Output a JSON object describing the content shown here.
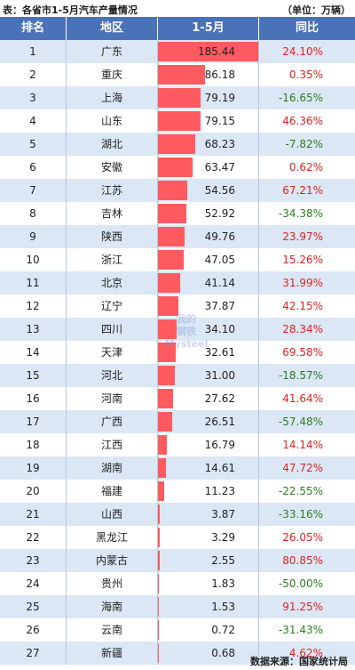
{
  "caption": {
    "title": "表：各省市1-5月汽车产量情况",
    "unit": "（单位：万辆）"
  },
  "source": "数据来源：国家统计局",
  "colors": {
    "header": "#4a72b8",
    "bar": "#ff5a5f",
    "positive": "#e0231e",
    "negative": "#2e7d1f",
    "band": "#dbe7f5"
  },
  "chart_data": {
    "type": "table",
    "columns": [
      "排名",
      "地区",
      "1-5月",
      "同比"
    ],
    "max_value": 185.44,
    "rows": [
      {
        "rank": "1",
        "region": "广东",
        "value": 185.44,
        "value_label": "185.44",
        "yoy": "24.10%"
      },
      {
        "rank": "2",
        "region": "重庆",
        "value": 86.18,
        "value_label": "86.18",
        "yoy": "0.35%"
      },
      {
        "rank": "3",
        "region": "上海",
        "value": 79.19,
        "value_label": "79.19",
        "yoy": "-16.65%"
      },
      {
        "rank": "4",
        "region": "山东",
        "value": 79.15,
        "value_label": "79.15",
        "yoy": "46.36%"
      },
      {
        "rank": "5",
        "region": "湖北",
        "value": 68.23,
        "value_label": "68.23",
        "yoy": "-7.82%"
      },
      {
        "rank": "6",
        "region": "安徽",
        "value": 63.47,
        "value_label": "63.47",
        "yoy": "0.62%"
      },
      {
        "rank": "7",
        "region": "江苏",
        "value": 54.56,
        "value_label": "54.56",
        "yoy": "67.21%"
      },
      {
        "rank": "8",
        "region": "吉林",
        "value": 52.92,
        "value_label": "52.92",
        "yoy": "-34.38%"
      },
      {
        "rank": "9",
        "region": "陕西",
        "value": 49.76,
        "value_label": "49.76",
        "yoy": "23.97%"
      },
      {
        "rank": "10",
        "region": "浙江",
        "value": 47.05,
        "value_label": "47.05",
        "yoy": "15.26%"
      },
      {
        "rank": "11",
        "region": "北京",
        "value": 41.14,
        "value_label": "41.14",
        "yoy": "31.99%"
      },
      {
        "rank": "12",
        "region": "辽宁",
        "value": 37.87,
        "value_label": "37.87",
        "yoy": "42.15%"
      },
      {
        "rank": "13",
        "region": "四川",
        "value": 34.1,
        "value_label": "34.10",
        "yoy": "28.34%"
      },
      {
        "rank": "14",
        "region": "天津",
        "value": 32.61,
        "value_label": "32.61",
        "yoy": "69.58%"
      },
      {
        "rank": "15",
        "region": "河北",
        "value": 31.0,
        "value_label": "31.00",
        "yoy": "-18.57%"
      },
      {
        "rank": "16",
        "region": "河南",
        "value": 27.62,
        "value_label": "27.62",
        "yoy": "41.64%"
      },
      {
        "rank": "17",
        "region": "广西",
        "value": 26.51,
        "value_label": "26.51",
        "yoy": "-57.48%"
      },
      {
        "rank": "18",
        "region": "江西",
        "value": 16.79,
        "value_label": "16.79",
        "yoy": "14.14%"
      },
      {
        "rank": "19",
        "region": "湖南",
        "value": 14.61,
        "value_label": "14.61",
        "yoy": "47.72%"
      },
      {
        "rank": "20",
        "region": "福建",
        "value": 11.23,
        "value_label": "11.23",
        "yoy": "-22.55%"
      },
      {
        "rank": "21",
        "region": "山西",
        "value": 3.87,
        "value_label": "3.87",
        "yoy": "-33.16%"
      },
      {
        "rank": "22",
        "region": "黑龙江",
        "value": 3.29,
        "value_label": "3.29",
        "yoy": "26.05%"
      },
      {
        "rank": "23",
        "region": "内蒙古",
        "value": 2.55,
        "value_label": "2.55",
        "yoy": "80.85%"
      },
      {
        "rank": "24",
        "region": "贵州",
        "value": 1.83,
        "value_label": "1.83",
        "yoy": "-50.00%"
      },
      {
        "rank": "25",
        "region": "海南",
        "value": 1.53,
        "value_label": "1.53",
        "yoy": "91.25%"
      },
      {
        "rank": "26",
        "region": "云南",
        "value": 0.72,
        "value_label": "0.72",
        "yoy": "-31.43%"
      },
      {
        "rank": "27",
        "region": "新疆",
        "value": 0.68,
        "value_label": "0.68",
        "yoy": "4.62%"
      }
    ]
  }
}
